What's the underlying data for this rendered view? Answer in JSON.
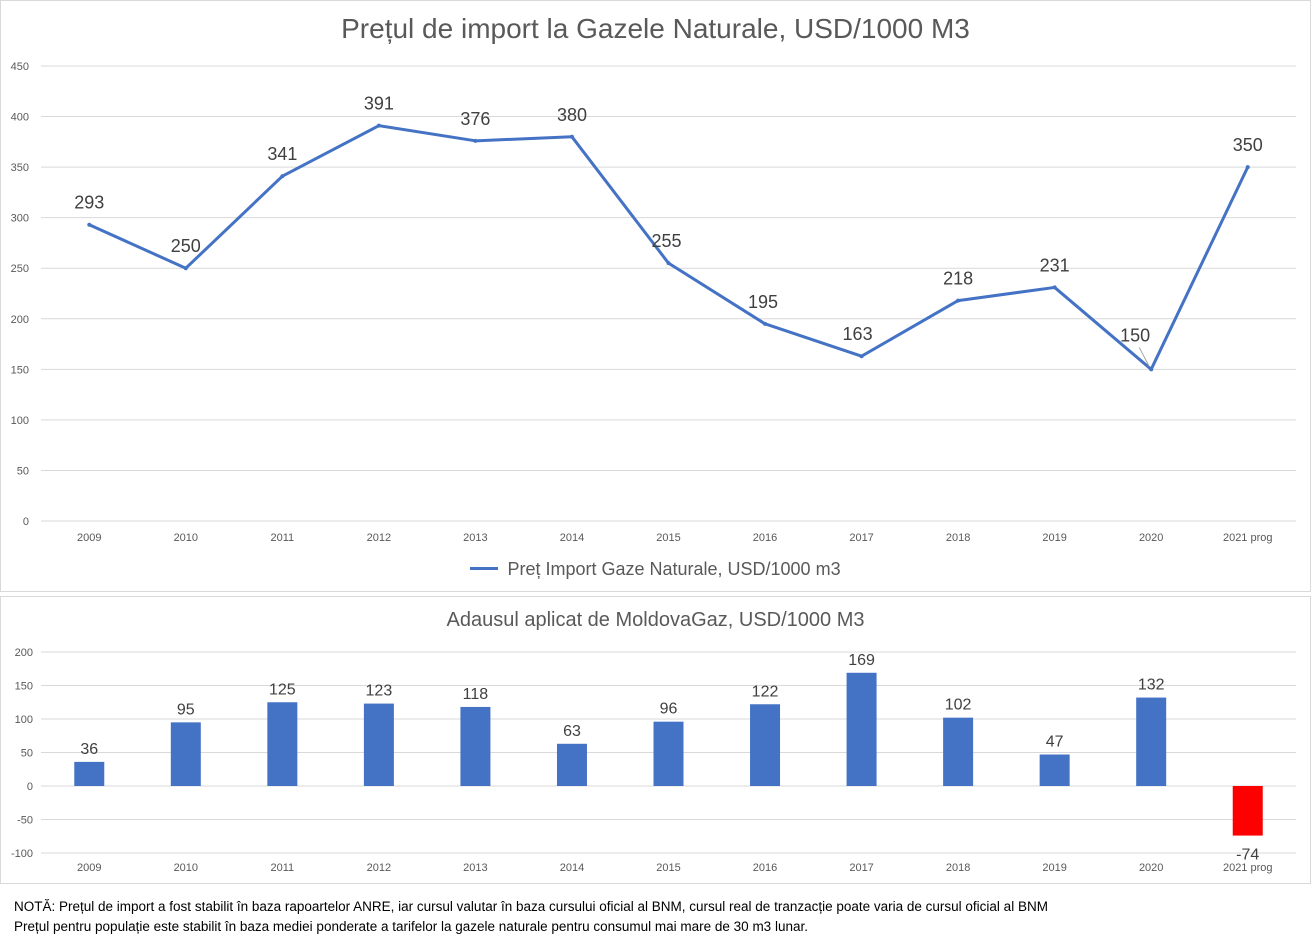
{
  "chart_data": [
    {
      "type": "line",
      "title": "Prețul de import la Gazele Naturale, USD/1000 M3",
      "categories": [
        "2009",
        "2010",
        "2011",
        "2012",
        "2013",
        "2014",
        "2015",
        "2016",
        "2017",
        "2018",
        "2019",
        "2020",
        "2021 prog"
      ],
      "series": [
        {
          "name": "Preț Import Gaze Naturale, USD/1000 m3",
          "values": [
            293,
            250,
            341,
            391,
            376,
            380,
            255,
            195,
            163,
            218,
            231,
            150,
            350
          ]
        }
      ],
      "yticks": [
        0,
        50,
        100,
        150,
        200,
        250,
        300,
        350,
        400,
        450
      ],
      "ylim": [
        0,
        450
      ],
      "grid": true,
      "legend": "bottom",
      "line_color": "#4472c4"
    },
    {
      "type": "bar",
      "title": "Adausul aplicat de MoldovaGaz, USD/1000 M3",
      "categories": [
        "2009",
        "2010",
        "2011",
        "2012",
        "2013",
        "2014",
        "2015",
        "2016",
        "2017",
        "2018",
        "2019",
        "2020",
        "2021 prog"
      ],
      "series": [
        {
          "name": "Adaus",
          "values": [
            36,
            95,
            125,
            123,
            118,
            63,
            96,
            122,
            169,
            102,
            47,
            132,
            -74
          ]
        }
      ],
      "yticks": [
        -100,
        -50,
        0,
        50,
        100,
        150,
        200
      ],
      "ylim": [
        -100,
        200
      ],
      "grid": true,
      "bar_color": "#4472c4",
      "negative_bar_color": "#ff0000"
    }
  ],
  "notes": [
    "NOTĂ: Prețul de import  a fost stabilit în baza rapoartelor ANRE, iar cursul valutar în baza cursului oficial al BNM, cursul real de tranzacție poate varia de cursul oficial al BNM",
    "Prețul pentru populație este stabilit în baza mediei ponderate a tarifelor la gazele naturale pentru consumul mai mare de 30 m3 lunar."
  ]
}
